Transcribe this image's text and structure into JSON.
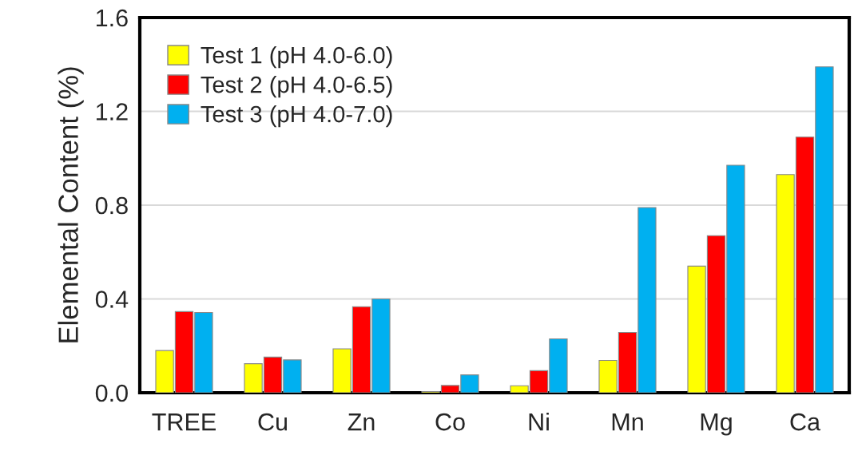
{
  "chart_data": {
    "type": "bar",
    "ylabel": "Elemental Content (%)",
    "categories": [
      "TREE",
      "Cu",
      "Zn",
      "Co",
      "Ni",
      "Mn",
      "Mg",
      "Ca"
    ],
    "series": [
      {
        "name": "Test 1 (pH 4.0-6.0)",
        "color": "#ffff00",
        "values": [
          0.18,
          0.124,
          0.187,
          0.005,
          0.03,
          0.138,
          0.54,
          0.93
        ]
      },
      {
        "name": "Test 2 (pH 4.0-6.5)",
        "color": "#ff0000",
        "values": [
          0.346,
          0.152,
          0.367,
          0.031,
          0.094,
          0.257,
          0.67,
          1.09
        ]
      },
      {
        "name": "Test 3 (pH 4.0-7.0)",
        "color": "#00b0f0",
        "values": [
          0.342,
          0.14,
          0.4,
          0.076,
          0.23,
          0.79,
          0.97,
          1.39
        ]
      }
    ],
    "ylim": [
      0,
      1.6
    ],
    "yticks": [
      {
        "value": 0,
        "label": "0.0"
      },
      {
        "value": 0.4,
        "label": "0.4"
      },
      {
        "value": 0.8,
        "label": "0.8"
      },
      {
        "value": 1.2,
        "label": "1.2"
      },
      {
        "value": 1.6,
        "label": "1.6"
      }
    ],
    "grid": "y",
    "legend": "top left"
  }
}
